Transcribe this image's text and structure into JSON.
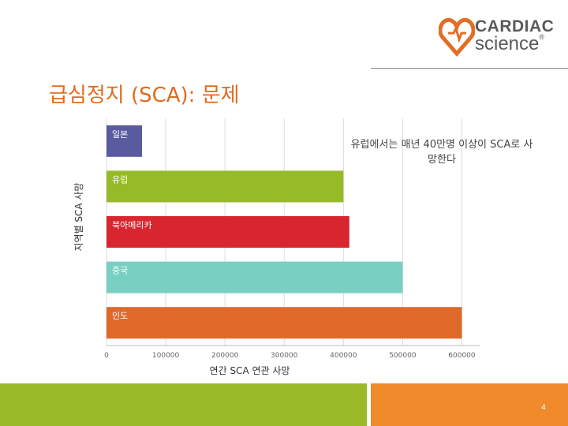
{
  "logo": {
    "top": "CARDIAC",
    "bottom": "science",
    "trademark": "®",
    "accent": "#e36d24"
  },
  "title": "급심정지 (SCA): 문제",
  "annotation": "유럽에서는 매년 40만명 이상이 SCA로 사망한다",
  "page_number": "4",
  "chart_data": {
    "type": "bar",
    "orientation": "horizontal",
    "categories": [
      "일본",
      "유럽",
      "북아메리카",
      "중국",
      "인도"
    ],
    "values": [
      60000,
      400000,
      410000,
      500000,
      600000
    ],
    "colors": [
      "#595a9f",
      "#97ba28",
      "#d7262f",
      "#78cfc2",
      "#e0692a"
    ],
    "xlabel": "연간 SCA 연관 사망",
    "ylabel": "지역별 SCA 사망",
    "xlim": [
      0,
      630000
    ],
    "xticks": [
      0,
      100000,
      200000,
      300000,
      400000,
      500000,
      600000
    ],
    "grid": true
  }
}
